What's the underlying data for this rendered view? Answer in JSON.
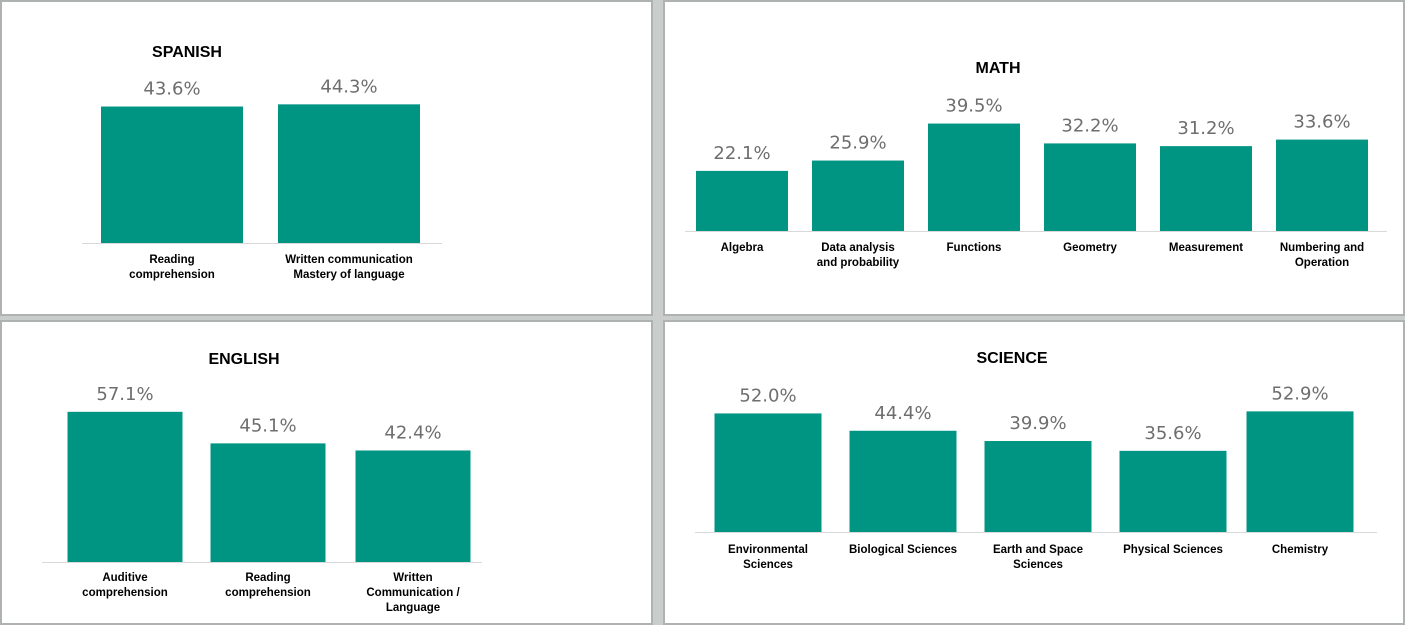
{
  "colors": {
    "bar": "#009483",
    "value_text": "#6e6e6e",
    "panel_bg": "#ffffff",
    "frame": "#c9cdcc"
  },
  "chart_data": [
    {
      "type": "bar",
      "title": "SPANISH",
      "categories": [
        [
          "Reading",
          "comprehension"
        ],
        [
          "Written communication",
          "Mastery of language"
        ]
      ],
      "values": [
        43.6,
        44.3
      ],
      "value_labels": [
        "43.6%",
        "44.3%"
      ]
    },
    {
      "type": "bar",
      "title": "MATH",
      "categories": [
        [
          "Algebra"
        ],
        [
          "Data analysis",
          "and probability"
        ],
        [
          "Functions"
        ],
        [
          "Geometry"
        ],
        [
          "Measurement"
        ],
        [
          "Numbering and",
          "Operation"
        ]
      ],
      "values": [
        22.1,
        25.9,
        39.5,
        32.2,
        31.2,
        33.6
      ],
      "value_labels": [
        "22.1%",
        "25.9%",
        "39.5%",
        "32.2%",
        "31.2%",
        "33.6%"
      ]
    },
    {
      "type": "bar",
      "title": "ENGLISH",
      "categories": [
        [
          "Auditive",
          "comprehension"
        ],
        [
          "Reading",
          "comprehension"
        ],
        [
          "Written",
          "Communication /",
          "Language"
        ]
      ],
      "values": [
        57.1,
        45.1,
        42.4
      ],
      "value_labels": [
        "57.1%",
        "45.1%",
        "42.4%"
      ]
    },
    {
      "type": "bar",
      "title": "SCIENCE",
      "categories": [
        [
          "Environmental",
          "Sciences"
        ],
        [
          "Biological Sciences"
        ],
        [
          "Earth and Space",
          "Sciences"
        ],
        [
          "Physical Sciences"
        ],
        [
          "Chemistry"
        ]
      ],
      "values": [
        52.0,
        44.4,
        39.9,
        35.6,
        52.9
      ],
      "value_labels": [
        "52.0%",
        "44.4%",
        "39.9%",
        "35.6%",
        "52.9%"
      ]
    }
  ]
}
